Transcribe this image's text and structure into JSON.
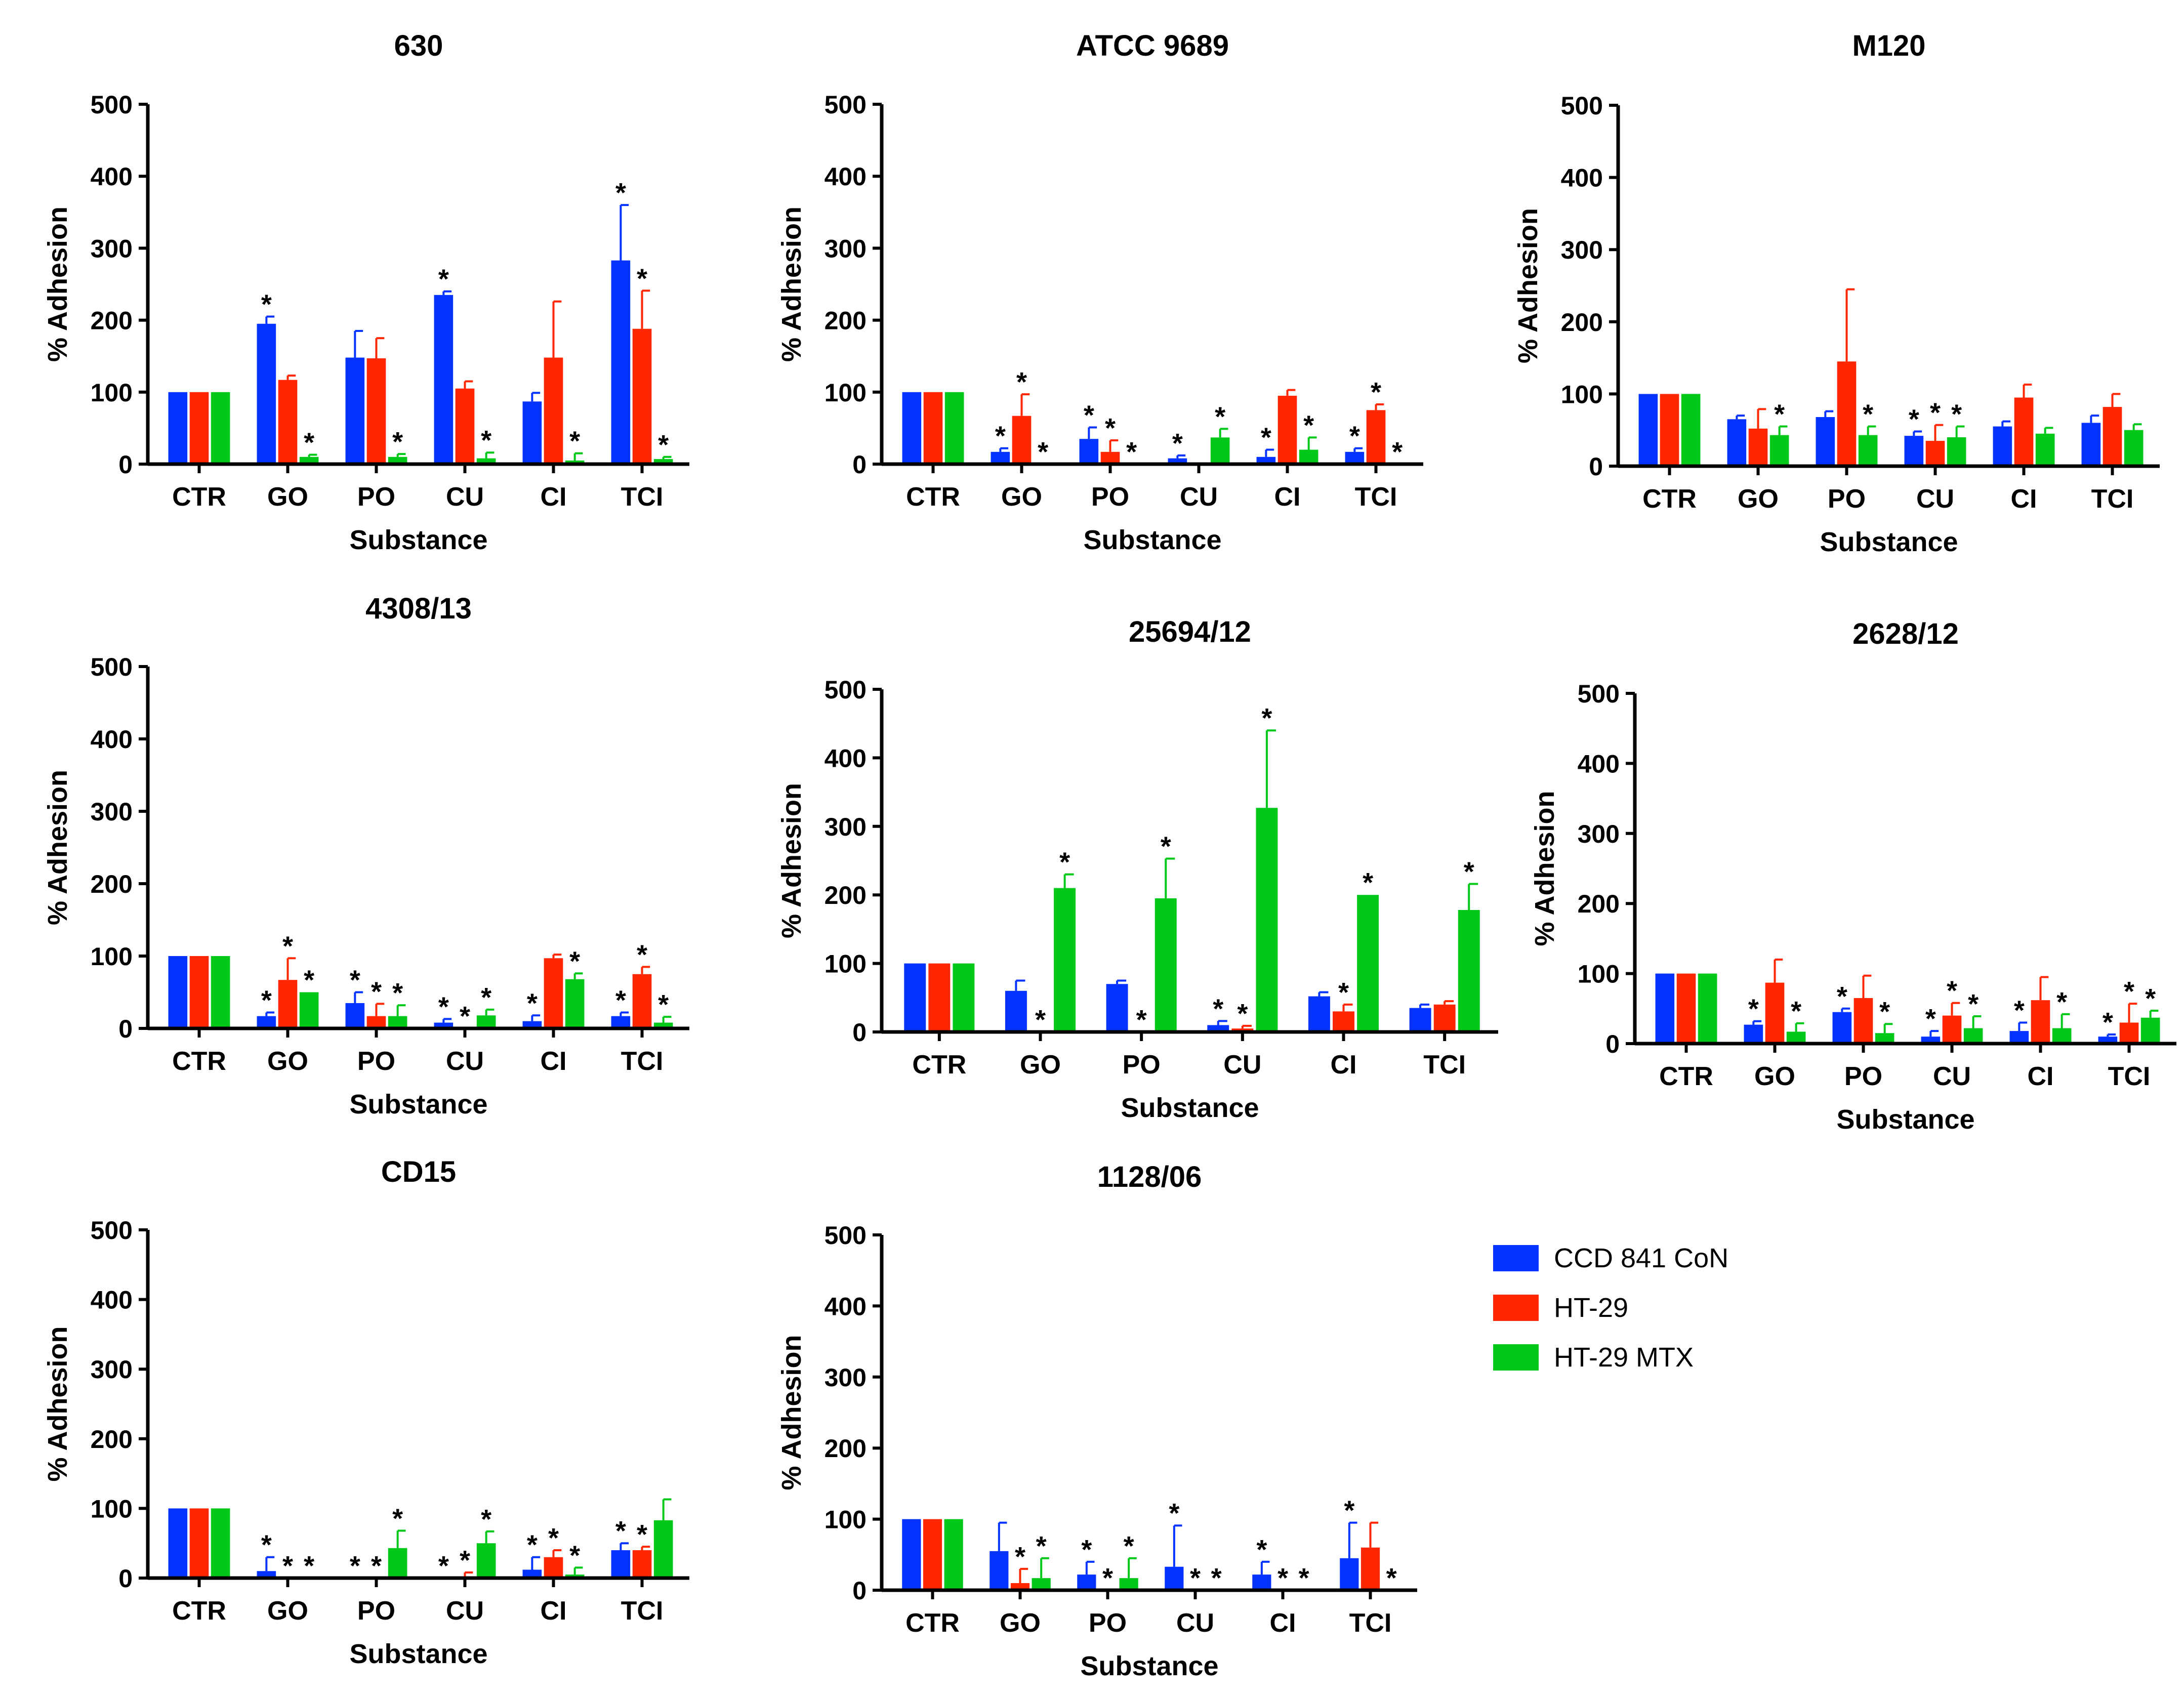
{
  "colors": {
    "CCD 841 CoN": "#0433FF",
    "HT-29": "#FF2600",
    "HT-29 MTX": "#00C818",
    "axis": "#000000"
  },
  "legend": {
    "placement": "right of bottom row",
    "entries": [
      {
        "label": "CCD 841 CoN",
        "color": "#0433FF"
      },
      {
        "label": "HT-29",
        "color": "#FF2600"
      },
      {
        "label": "HT-29 MTX",
        "color": "#00C818"
      }
    ]
  },
  "chart_data": [
    {
      "type": "bar",
      "title": "630",
      "xlabel": "Substance",
      "ylabel": "% Adhesion",
      "ylim": [
        0,
        500
      ],
      "yticks": [
        0,
        100,
        200,
        300,
        400,
        500
      ],
      "categories": [
        "CTR",
        "GO",
        "PO",
        "CU",
        "CI",
        "TCI"
      ],
      "series": [
        {
          "name": "CCD 841 CoN",
          "values": [
            100,
            195,
            148,
            235,
            87,
            283
          ],
          "errors": [
            0,
            10,
            37,
            5,
            12,
            77
          ],
          "sig": [
            false,
            true,
            false,
            true,
            false,
            true
          ]
        },
        {
          "name": "HT-29",
          "values": [
            100,
            117,
            147,
            105,
            148,
            188
          ],
          "errors": [
            0,
            6,
            28,
            10,
            78,
            53
          ],
          "sig": [
            false,
            false,
            false,
            false,
            false,
            true
          ]
        },
        {
          "name": "HT-29 MTX",
          "values": [
            100,
            10,
            10,
            8,
            5,
            7
          ],
          "errors": [
            0,
            3,
            4,
            8,
            10,
            3
          ],
          "sig": [
            false,
            true,
            true,
            true,
            true,
            true
          ]
        }
      ]
    },
    {
      "type": "bar",
      "title": "ATCC 9689",
      "xlabel": "Substance",
      "ylabel": "% Adhesion",
      "ylim": [
        0,
        500
      ],
      "yticks": [
        0,
        100,
        200,
        300,
        400,
        500
      ],
      "categories": [
        "CTR",
        "GO",
        "PO",
        "CU",
        "CI",
        "TCI"
      ],
      "series": [
        {
          "name": "CCD 841 CoN",
          "values": [
            100,
            17,
            35,
            8,
            10,
            17
          ],
          "errors": [
            0,
            5,
            16,
            4,
            10,
            5
          ],
          "sig": [
            false,
            true,
            true,
            true,
            true,
            true
          ]
        },
        {
          "name": "HT-29",
          "values": [
            100,
            67,
            17,
            0,
            95,
            75
          ],
          "errors": [
            0,
            30,
            16,
            0,
            8,
            8
          ],
          "sig": [
            false,
            true,
            true,
            false,
            false,
            true
          ]
        },
        {
          "name": "HT-29 MTX",
          "values": [
            100,
            0,
            0,
            37,
            20,
            0
          ],
          "errors": [
            0,
            0,
            0,
            12,
            17,
            0
          ],
          "sig": [
            false,
            true,
            true,
            true,
            true,
            true
          ]
        }
      ]
    },
    {
      "type": "bar",
      "title": "M120",
      "xlabel": "Substance",
      "ylabel": "% Adhesion",
      "ylim": [
        0,
        500
      ],
      "yticks": [
        0,
        100,
        200,
        300,
        400,
        500
      ],
      "categories": [
        "CTR",
        "GO",
        "PO",
        "CU",
        "CI",
        "TCI"
      ],
      "series": [
        {
          "name": "CCD 841 CoN",
          "values": [
            100,
            65,
            68,
            42,
            55,
            60
          ],
          "errors": [
            0,
            5,
            8,
            6,
            7,
            10
          ],
          "sig": [
            false,
            false,
            false,
            true,
            false,
            false
          ]
        },
        {
          "name": "HT-29",
          "values": [
            100,
            52,
            145,
            35,
            95,
            82
          ],
          "errors": [
            0,
            27,
            100,
            22,
            18,
            18
          ],
          "sig": [
            false,
            false,
            false,
            true,
            false,
            false
          ]
        },
        {
          "name": "HT-29 MTX",
          "values": [
            100,
            43,
            43,
            40,
            45,
            50
          ],
          "errors": [
            0,
            12,
            12,
            15,
            8,
            8
          ],
          "sig": [
            false,
            true,
            true,
            true,
            false,
            false
          ]
        }
      ]
    },
    {
      "type": "bar",
      "title": "4308/13",
      "xlabel": "Substance",
      "ylabel": "% Adhesion",
      "ylim": [
        0,
        500
      ],
      "yticks": [
        0,
        100,
        200,
        300,
        400,
        500
      ],
      "categories": [
        "CTR",
        "GO",
        "PO",
        "CU",
        "CI",
        "TCI"
      ],
      "series": [
        {
          "name": "CCD 841 CoN",
          "values": [
            100,
            17,
            35,
            8,
            10,
            17
          ],
          "errors": [
            0,
            5,
            15,
            5,
            8,
            5
          ],
          "sig": [
            false,
            true,
            true,
            true,
            true,
            true
          ]
        },
        {
          "name": "HT-29",
          "values": [
            100,
            67,
            17,
            0,
            97,
            75
          ],
          "errors": [
            0,
            30,
            17,
            0,
            5,
            10
          ],
          "sig": [
            false,
            true,
            true,
            true,
            false,
            true
          ]
        },
        {
          "name": "HT-29 MTX",
          "values": [
            100,
            50,
            17,
            18,
            68,
            8
          ],
          "errors": [
            0,
            0,
            15,
            8,
            8,
            8
          ],
          "sig": [
            false,
            true,
            true,
            true,
            true,
            true
          ]
        }
      ]
    },
    {
      "type": "bar",
      "title": "25694/12",
      "xlabel": "Substance",
      "ylabel": "% Adhesion",
      "ylim": [
        0,
        500
      ],
      "yticks": [
        0,
        100,
        200,
        300,
        400,
        500
      ],
      "categories": [
        "CTR",
        "GO",
        "PO",
        "CU",
        "CI",
        "TCI"
      ],
      "series": [
        {
          "name": "CCD 841 CoN",
          "values": [
            100,
            60,
            70,
            10,
            52,
            35
          ],
          "errors": [
            0,
            15,
            5,
            6,
            6,
            5
          ],
          "sig": [
            false,
            false,
            false,
            true,
            false,
            false
          ]
        },
        {
          "name": "HT-29",
          "values": [
            100,
            0,
            0,
            5,
            30,
            40
          ],
          "errors": [
            0,
            0,
            0,
            4,
            10,
            5
          ],
          "sig": [
            false,
            true,
            true,
            true,
            true,
            false
          ]
        },
        {
          "name": "HT-29 MTX",
          "values": [
            100,
            210,
            195,
            327,
            200,
            178
          ],
          "errors": [
            0,
            20,
            58,
            113,
            0,
            38
          ],
          "sig": [
            false,
            true,
            true,
            true,
            true,
            true
          ]
        }
      ]
    },
    {
      "type": "bar",
      "title": "2628/12",
      "xlabel": "Substance",
      "ylabel": "% Adhesion",
      "ylim": [
        0,
        500
      ],
      "yticks": [
        0,
        100,
        200,
        300,
        400,
        500
      ],
      "categories": [
        "CTR",
        "GO",
        "PO",
        "CU",
        "CI",
        "TCI"
      ],
      "series": [
        {
          "name": "CCD 841 CoN",
          "values": [
            100,
            27,
            45,
            10,
            18,
            10
          ],
          "errors": [
            0,
            5,
            5,
            8,
            12,
            3
          ],
          "sig": [
            false,
            true,
            true,
            true,
            true,
            true
          ]
        },
        {
          "name": "HT-29",
          "values": [
            100,
            87,
            65,
            40,
            62,
            30
          ],
          "errors": [
            0,
            33,
            32,
            18,
            33,
            27
          ],
          "sig": [
            false,
            false,
            false,
            true,
            false,
            true
          ]
        },
        {
          "name": "HT-29 MTX",
          "values": [
            100,
            17,
            15,
            22,
            22,
            37
          ],
          "errors": [
            0,
            12,
            13,
            17,
            20,
            10
          ],
          "sig": [
            false,
            true,
            true,
            true,
            true,
            true
          ]
        }
      ]
    },
    {
      "type": "bar",
      "title": "CD15",
      "xlabel": "Substance",
      "ylabel": "% Adhesion",
      "ylim": [
        0,
        500
      ],
      "yticks": [
        0,
        100,
        200,
        300,
        400,
        500
      ],
      "categories": [
        "CTR",
        "GO",
        "PO",
        "CU",
        "CI",
        "TCI"
      ],
      "series": [
        {
          "name": "CCD 841 CoN",
          "values": [
            100,
            10,
            0,
            0,
            12,
            40
          ],
          "errors": [
            0,
            20,
            0,
            0,
            18,
            10
          ],
          "sig": [
            false,
            true,
            true,
            true,
            true,
            true
          ]
        },
        {
          "name": "HT-29",
          "values": [
            100,
            0,
            0,
            0,
            30,
            40
          ],
          "errors": [
            0,
            0,
            0,
            8,
            10,
            5
          ],
          "sig": [
            false,
            true,
            true,
            true,
            true,
            true
          ]
        },
        {
          "name": "HT-29 MTX",
          "values": [
            100,
            0,
            43,
            50,
            5,
            83
          ],
          "errors": [
            0,
            0,
            25,
            17,
            10,
            30
          ],
          "sig": [
            false,
            true,
            true,
            true,
            true,
            false
          ]
        }
      ]
    },
    {
      "type": "bar",
      "title": "1128/06",
      "xlabel": "Substance",
      "ylabel": "% Adhesion",
      "ylim": [
        0,
        500
      ],
      "yticks": [
        0,
        100,
        200,
        300,
        400,
        500
      ],
      "categories": [
        "CTR",
        "GO",
        "PO",
        "CU",
        "CI",
        "TCI"
      ],
      "series": [
        {
          "name": "CCD 841 CoN",
          "values": [
            100,
            55,
            22,
            33,
            22,
            45
          ],
          "errors": [
            0,
            40,
            18,
            58,
            18,
            50
          ],
          "sig": [
            false,
            false,
            true,
            true,
            true,
            true
          ]
        },
        {
          "name": "HT-29",
          "values": [
            100,
            10,
            0,
            0,
            0,
            60
          ],
          "errors": [
            0,
            20,
            0,
            0,
            0,
            35
          ],
          "sig": [
            false,
            true,
            true,
            true,
            true,
            false
          ]
        },
        {
          "name": "HT-29 MTX",
          "values": [
            100,
            17,
            17,
            0,
            0,
            0
          ],
          "errors": [
            0,
            28,
            28,
            0,
            0,
            0
          ],
          "sig": [
            false,
            true,
            true,
            true,
            true,
            true
          ]
        }
      ]
    }
  ]
}
